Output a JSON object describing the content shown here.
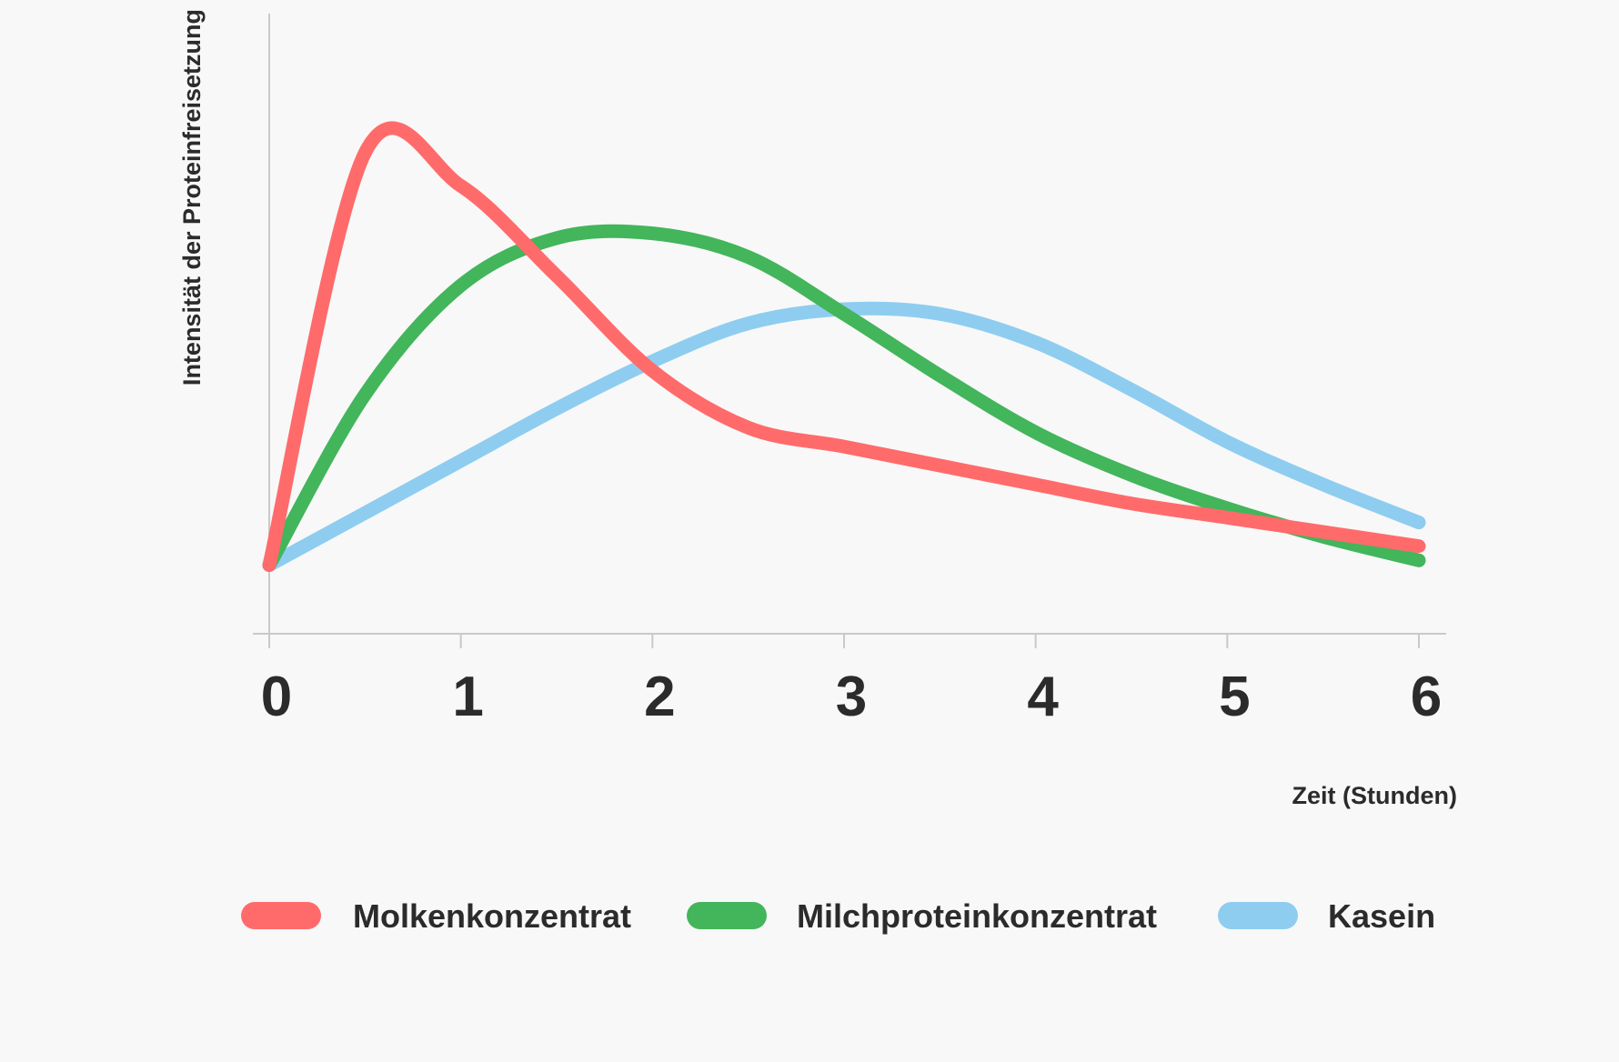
{
  "chart_data": {
    "type": "line",
    "title": "",
    "xlabel": "Zeit (Stunden)",
    "ylabel": "Intensität der Proteinfreisetzung",
    "x": [
      0,
      0.5,
      1,
      1.5,
      2,
      2.5,
      3,
      3.5,
      4,
      4.5,
      5,
      5.5,
      6
    ],
    "xlim": [
      0,
      6
    ],
    "ylim": [
      0,
      100
    ],
    "x_ticks": [
      "0",
      "1",
      "2",
      "3",
      "4",
      "5",
      "6"
    ],
    "y_ticks_shown": false,
    "grid": false,
    "legend_position": "bottom",
    "series": [
      {
        "name": "Molkenkonzentrat",
        "color": "#ff6b6b",
        "values": [
          7,
          94,
          87,
          68,
          48,
          36,
          32,
          28,
          24,
          20,
          17,
          14,
          11
        ]
      },
      {
        "name": "Milchproteinkonzentrat",
        "color": "#43b55b",
        "values": [
          7,
          43,
          66,
          76,
          77,
          72,
          60,
          47,
          35,
          26,
          19,
          13,
          8
        ]
      },
      {
        "name": "Kasein",
        "color": "#8ecdf0",
        "values": [
          7,
          18,
          29,
          40,
          50,
          58,
          61,
          60,
          54,
          44,
          33,
          24,
          16
        ]
      }
    ]
  }
}
